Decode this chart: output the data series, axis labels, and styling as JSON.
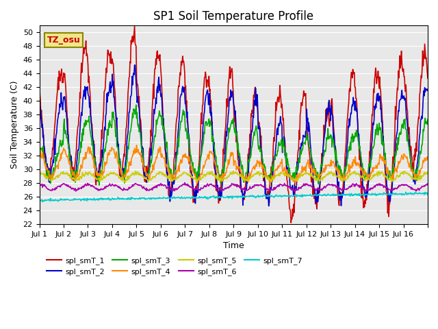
{
  "title": "SP1 Soil Temperature Profile",
  "xlabel": "Time",
  "ylabel": "Soil Temperature (C)",
  "annotation": "TZ_osu",
  "ylim": [
    22,
    51
  ],
  "yticks": [
    22,
    24,
    26,
    28,
    30,
    32,
    34,
    36,
    38,
    40,
    42,
    44,
    46,
    48,
    50
  ],
  "bg_color": "#e8e8e8",
  "series_colors": {
    "spl_smT_1": "#cc0000",
    "spl_smT_2": "#0000cc",
    "spl_smT_3": "#00aa00",
    "spl_smT_4": "#ff8800",
    "spl_smT_5": "#cccc00",
    "spl_smT_6": "#aa00aa",
    "spl_smT_7": "#00cccc"
  },
  "legend_labels": [
    "spl_smT_1",
    "spl_smT_2",
    "spl_smT_3",
    "spl_smT_4",
    "spl_smT_5",
    "spl_smT_6",
    "spl_smT_7"
  ],
  "xtick_positions": [
    0,
    1,
    2,
    3,
    4,
    5,
    6,
    7,
    8,
    9,
    10,
    11,
    12,
    13,
    14,
    15,
    16
  ],
  "xtick_labels": [
    "Jul 1",
    "Jul 2",
    "Jul 3",
    "Jul 4",
    "Jul 5",
    "Jul 6",
    "Jul 7",
    "Jul 8",
    "Jul 9",
    "Jul 10",
    "Jul 11",
    "Jul 12",
    "Jul 13",
    "Jul 14",
    "Jul 15",
    "Jul 16",
    ""
  ],
  "n_days": 16,
  "pts_per_day": 48
}
